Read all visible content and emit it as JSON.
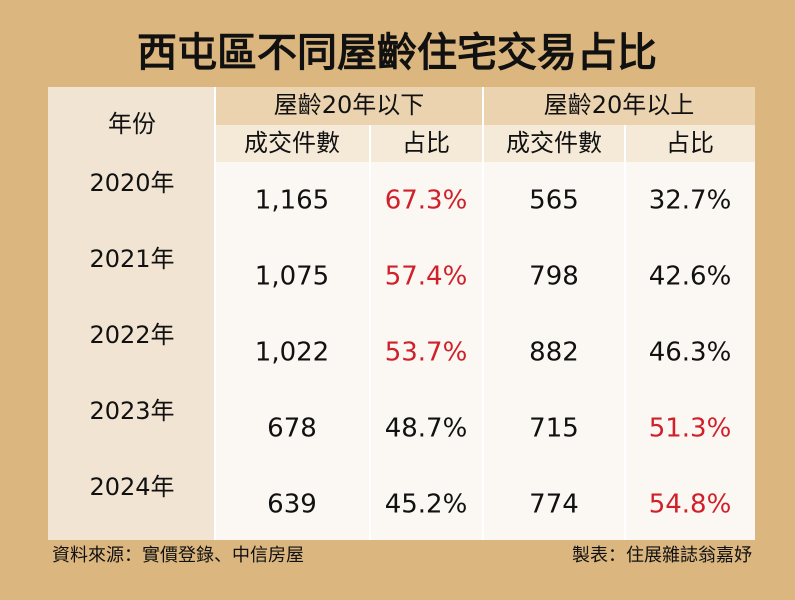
{
  "title": "西屯區不同屋齡住宅交易占比",
  "table": {
    "corner": "年份",
    "groups": [
      "屋齡20年以下",
      "屋齡20年以上"
    ],
    "columns": [
      "成交件數",
      "占比",
      "成交件數",
      "占比"
    ],
    "rows": [
      [
        "2020年",
        "1,165",
        "67.3%",
        "565",
        "32.7%"
      ],
      [
        "2021年",
        "1,075",
        "57.4%",
        "798",
        "42.6%"
      ],
      [
        "2022年",
        "1,022",
        "53.7%",
        "882",
        "46.3%"
      ],
      [
        "2023年",
        "678",
        "48.7%",
        "715",
        "51.3%"
      ],
      [
        "2024年",
        "639",
        "45.2%",
        "774",
        "54.8%"
      ]
    ],
    "colors": [
      [
        "#111111",
        "#111111",
        "#d0202a",
        "#111111",
        "#111111"
      ],
      [
        "#111111",
        "#111111",
        "#d0202a",
        "#111111",
        "#111111"
      ],
      [
        "#111111",
        "#111111",
        "#d0202a",
        "#111111",
        "#111111"
      ],
      [
        "#111111",
        "#111111",
        "#111111",
        "#111111",
        "#d0202a"
      ],
      [
        "#111111",
        "#111111",
        "#111111",
        "#111111",
        "#d0202a"
      ]
    ]
  },
  "footer": {
    "source": "資料來源：實價登錄、中信房屋",
    "credit": "製表：住展雜誌翁嘉妤"
  }
}
